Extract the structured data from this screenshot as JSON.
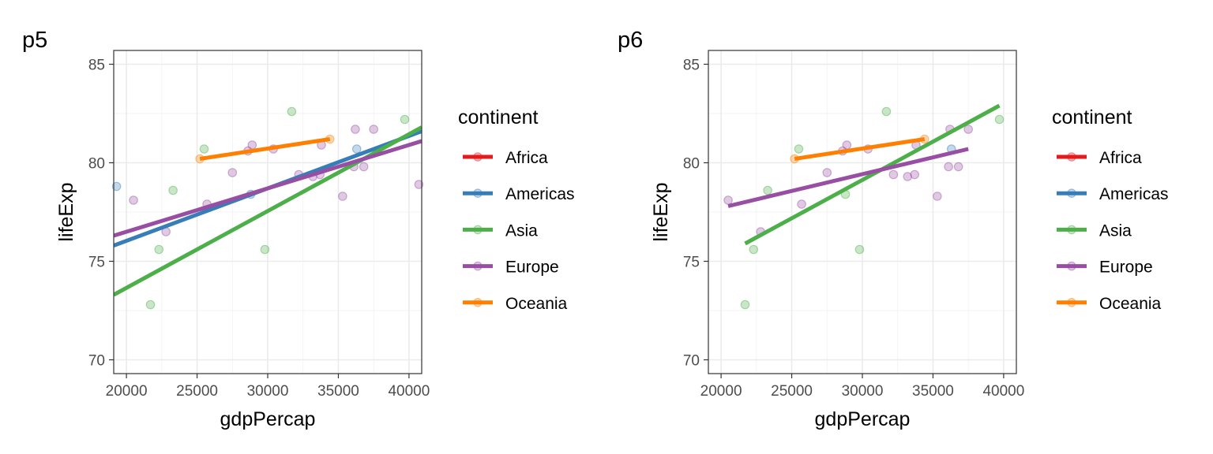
{
  "chart_data": [
    {
      "type": "scatter",
      "tag": "p5",
      "xlabel": "gdpPercap",
      "ylabel": "lifeExp",
      "xlim": [
        19100,
        40900
      ],
      "ylim": [
        69.3,
        85.7
      ],
      "x_ticks": [
        20000,
        25000,
        30000,
        35000,
        40000
      ],
      "y_ticks": [
        70,
        75,
        80,
        85
      ],
      "grid": true,
      "legend": {
        "title": "continent",
        "placement": "right",
        "entries": [
          "Africa",
          "Americas",
          "Asia",
          "Europe",
          "Oceania"
        ]
      },
      "colors": {
        "Africa": "#E41A1C",
        "Americas": "#377EB8",
        "Asia": "#4DAF4A",
        "Europe": "#984EA3",
        "Oceania": "#FF7F00"
      },
      "series": [
        {
          "name": "Americas",
          "points": [
            [
              19300,
              78.8
            ],
            [
              28800,
              78.4
            ],
            [
              36300,
              80.7
            ]
          ],
          "fit_line": [
            [
              19100,
              75.8
            ],
            [
              40900,
              81.6
            ]
          ]
        },
        {
          "name": "Asia",
          "points": [
            [
              21700,
              72.8
            ],
            [
              22300,
              75.6
            ],
            [
              23300,
              78.6
            ],
            [
              25500,
              80.7
            ],
            [
              29800,
              75.6
            ],
            [
              31700,
              82.6
            ],
            [
              39700,
              82.2
            ]
          ],
          "fit_line": [
            [
              19100,
              73.3
            ],
            [
              40900,
              81.8
            ]
          ]
        },
        {
          "name": "Europe",
          "points": [
            [
              20500,
              78.1
            ],
            [
              22800,
              76.5
            ],
            [
              25700,
              77.9
            ],
            [
              27500,
              79.5
            ],
            [
              28600,
              80.6
            ],
            [
              28900,
              80.9
            ],
            [
              30400,
              80.7
            ],
            [
              32200,
              79.4
            ],
            [
              33200,
              79.3
            ],
            [
              33700,
              79.4
            ],
            [
              33800,
              80.9
            ],
            [
              35300,
              78.3
            ],
            [
              36100,
              79.8
            ],
            [
              36200,
              81.7
            ],
            [
              36800,
              79.8
            ],
            [
              37500,
              81.7
            ],
            [
              40700,
              78.9
            ]
          ],
          "fit_line": [
            [
              19100,
              76.3
            ],
            [
              40900,
              81.1
            ]
          ]
        },
        {
          "name": "Oceania",
          "points": [
            [
              25200,
              80.2
            ],
            [
              34400,
              81.2
            ]
          ],
          "fit_line": [
            [
              25200,
              80.2
            ],
            [
              34400,
              81.2
            ]
          ]
        }
      ]
    },
    {
      "type": "scatter",
      "tag": "p6",
      "xlabel": "gdpPercap",
      "ylabel": "lifeExp",
      "xlim": [
        19100,
        40900
      ],
      "ylim": [
        69.3,
        85.7
      ],
      "x_ticks": [
        20000,
        25000,
        30000,
        35000,
        40000
      ],
      "y_ticks": [
        70,
        75,
        80,
        85
      ],
      "grid": true,
      "legend": {
        "title": "continent",
        "placement": "right",
        "entries": [
          "Africa",
          "Americas",
          "Asia",
          "Europe",
          "Oceania"
        ]
      },
      "colors": {
        "Africa": "#E41A1C",
        "Americas": "#377EB8",
        "Asia": "#4DAF4A",
        "Europe": "#984EA3",
        "Oceania": "#FF7F00"
      },
      "series": [
        {
          "name": "Americas",
          "points": [
            [
              36300,
              80.7
            ]
          ],
          "fit_line": []
        },
        {
          "name": "Asia",
          "points": [
            [
              21700,
              72.8
            ],
            [
              22300,
              75.6
            ],
            [
              23300,
              78.6
            ],
            [
              25500,
              80.7
            ],
            [
              28800,
              78.4
            ],
            [
              29800,
              75.6
            ],
            [
              31700,
              82.6
            ],
            [
              39700,
              82.2
            ]
          ],
          "fit_line": [
            [
              21700,
              75.9
            ],
            [
              39700,
              82.9
            ]
          ]
        },
        {
          "name": "Europe",
          "points": [
            [
              20500,
              78.1
            ],
            [
              22800,
              76.5
            ],
            [
              25700,
              77.9
            ],
            [
              27500,
              79.5
            ],
            [
              28600,
              80.6
            ],
            [
              28900,
              80.9
            ],
            [
              30400,
              80.7
            ],
            [
              32200,
              79.4
            ],
            [
              33200,
              79.3
            ],
            [
              33700,
              79.4
            ],
            [
              33800,
              80.9
            ],
            [
              35300,
              78.3
            ],
            [
              36100,
              79.8
            ],
            [
              36200,
              81.7
            ],
            [
              36800,
              79.8
            ],
            [
              37500,
              81.7
            ]
          ],
          "fit_line": [
            [
              20500,
              77.8
            ],
            [
              37500,
              80.7
            ]
          ]
        },
        {
          "name": "Oceania",
          "points": [
            [
              25200,
              80.2
            ],
            [
              34400,
              81.2
            ]
          ],
          "fit_line": [
            [
              25200,
              80.2
            ],
            [
              34400,
              81.2
            ]
          ]
        }
      ]
    }
  ]
}
